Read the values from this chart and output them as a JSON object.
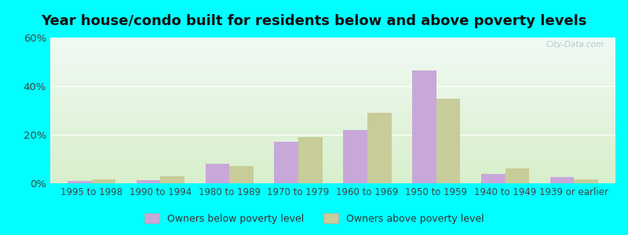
{
  "title": "Year house/condo built for residents below and above poverty levels",
  "categories": [
    "1995 to 1998",
    "1990 to 1994",
    "1980 to 1989",
    "1970 to 1979",
    "1960 to 1969",
    "1950 to 1959",
    "1940 to 1949",
    "1939 or earlier"
  ],
  "below_poverty": [
    1.0,
    1.2,
    8.0,
    17.0,
    22.0,
    46.5,
    4.0,
    2.5
  ],
  "above_poverty": [
    1.5,
    3.0,
    7.0,
    19.0,
    29.0,
    35.0,
    6.0,
    1.5
  ],
  "below_color": "#c8a8d8",
  "above_color": "#c8cc99",
  "ylim": [
    0,
    60
  ],
  "yticks": [
    0,
    20,
    40,
    60
  ],
  "ytick_labels": [
    "0%",
    "20%",
    "40%",
    "60%"
  ],
  "outer_bg": "#00ffff",
  "legend_below": "Owners below poverty level",
  "legend_above": "Owners above poverty level",
  "bar_width": 0.35,
  "title_fontsize": 13,
  "tick_fontsize": 8.5,
  "legend_fontsize": 9,
  "grad_top": "#f0faf4",
  "grad_bottom": "#d8efcc"
}
